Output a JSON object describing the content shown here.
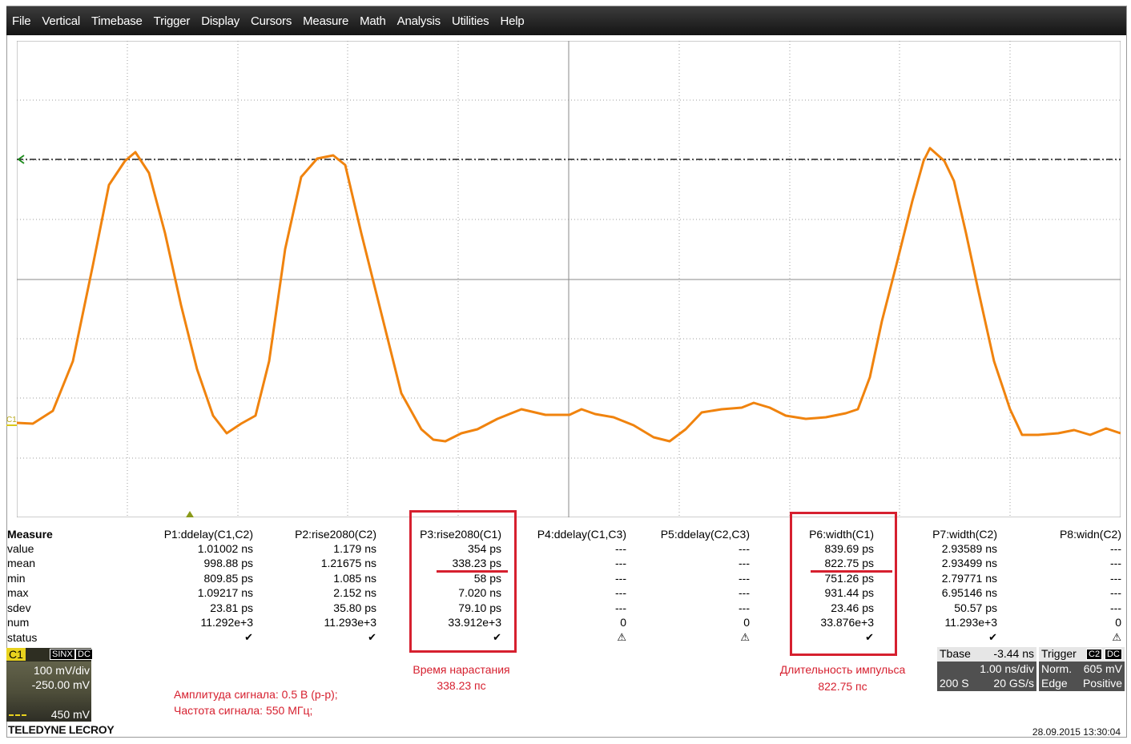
{
  "menu": [
    "File",
    "Vertical",
    "Timebase",
    "Trigger",
    "Display",
    "Cursors",
    "Measure",
    "Math",
    "Analysis",
    "Utilities",
    "Help"
  ],
  "colors": {
    "trace": "#f0830e",
    "highlight": "#d6202f",
    "menubar": "#1e1e1e",
    "channel_c1": "#e8d21e"
  },
  "trace_marker_label": "C1",
  "measure": {
    "title": "Measure",
    "row_labels": [
      "value",
      "mean",
      "min",
      "max",
      "sdev",
      "num",
      "status"
    ],
    "columns": [
      {
        "header": "P1:ddelay(C1,C2)",
        "cells": [
          "1.01002 ns",
          "998.88 ps",
          "809.85 ps",
          "1.09217 ns",
          "23.81 ps",
          "11.292e+3"
        ],
        "status": "check"
      },
      {
        "header": "P2:rise2080(C2)",
        "cells": [
          "1.179 ns",
          "1.21675 ns",
          "1.085 ns",
          "2.152 ns",
          "35.80 ps",
          "11.293e+3"
        ],
        "status": "check"
      },
      {
        "header": "P3:rise2080(C1)",
        "cells": [
          "354 ps",
          "338.23 ps",
          "58 ps",
          "7.020 ns",
          "79.10 ps",
          "33.912e+3"
        ],
        "status": "check"
      },
      {
        "header": "P4:ddelay(C1,C3)",
        "cells": [
          "---",
          "---",
          "---",
          "---",
          "---",
          "0"
        ],
        "status": "warning"
      },
      {
        "header": "P5:ddelay(C2,C3)",
        "cells": [
          "---",
          "---",
          "---",
          "---",
          "---",
          "0"
        ],
        "status": "warning"
      },
      {
        "header": "P6:width(C1)",
        "cells": [
          "839.69 ps",
          "822.75 ps",
          "751.26 ps",
          "931.44 ps",
          "23.46 ps",
          "33.876e+3"
        ],
        "status": "check"
      },
      {
        "header": "P7:width(C2)",
        "cells": [
          "2.93589 ns",
          "2.93499 ns",
          "2.79771 ns",
          "6.95146 ns",
          "50.57 ps",
          "11.293e+3"
        ],
        "status": "check"
      },
      {
        "header": "P8:widn(C2)",
        "cells": [
          "---",
          "---",
          "---",
          "---",
          "---",
          "0"
        ],
        "status": "warning"
      }
    ]
  },
  "annotations": {
    "rise_title": "Время нарастания",
    "rise_value": "338.23 пс",
    "width_title": "Длительность импульса",
    "width_value": "822.75 пс",
    "amplitude": "Амплитуда сигнала: 0.5 В (p-p);",
    "frequency": "Частота сигнала: 550 МГц;"
  },
  "channel": {
    "name": "C1",
    "badges": [
      "SINX",
      "DC"
    ],
    "vdiv": "100 mV/div",
    "offset": "-250.00 mV",
    "trig_level": "450 mV"
  },
  "timebase": {
    "label": "Tbase",
    "delay": "-3.44 ns",
    "tdiv": "1.00 ns/div",
    "samples": "200 S",
    "rate": "20 GS/s"
  },
  "trigger": {
    "label": "Trigger",
    "badges": [
      "C2",
      "DC"
    ],
    "mode": "Norm.",
    "level": "605 mV",
    "type": "Edge",
    "slope": "Positive"
  },
  "brand": "TELEDYNE LECROY",
  "timestamp": "28.09.2015 13:30:04"
}
